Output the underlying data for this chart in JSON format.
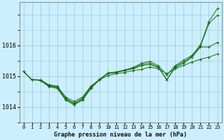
{
  "title": "Graphe pression niveau de la mer (hPa)",
  "bg_color": "#cceeff",
  "grid_color": "#99cccc",
  "line_color": "#1a6b1a",
  "x_labels": [
    "0",
    "1",
    "2",
    "3",
    "4",
    "5",
    "6",
    "7",
    "8",
    "9",
    "10",
    "11",
    "12",
    "13",
    "14",
    "15",
    "16",
    "17",
    "18",
    "19",
    "20",
    "21",
    "22",
    "23"
  ],
  "ylim": [
    1013.6,
    1017.4
  ],
  "yticks": [
    1014,
    1015,
    1016
  ],
  "series": [
    [
      1015.15,
      1014.88,
      1014.88,
      1014.72,
      1014.68,
      1014.32,
      1014.18,
      1014.32,
      1014.68,
      1014.88,
      1015.02,
      1015.08,
      1015.12,
      1015.18,
      1015.22,
      1015.3,
      1015.24,
      1015.08,
      1015.24,
      1015.35,
      1015.46,
      1015.55,
      1015.62,
      1015.72
    ],
    [
      1015.15,
      1014.88,
      1014.87,
      1014.7,
      1014.65,
      1014.28,
      1014.12,
      1014.28,
      1014.65,
      1014.9,
      1015.08,
      1015.12,
      1015.18,
      1015.24,
      1015.34,
      1015.38,
      1015.28,
      1014.88,
      1015.28,
      1015.42,
      1015.62,
      1015.95,
      1015.95,
      1016.1
    ],
    [
      1015.15,
      1014.88,
      1014.86,
      1014.68,
      1014.62,
      1014.25,
      1014.1,
      1014.25,
      1014.62,
      1014.88,
      1015.1,
      1015.12,
      1015.2,
      1015.26,
      1015.38,
      1015.42,
      1015.3,
      1014.88,
      1015.32,
      1015.46,
      1015.65,
      1015.98,
      1016.72,
      1016.98
    ],
    [
      1015.15,
      1014.88,
      1014.86,
      1014.66,
      1014.6,
      1014.22,
      1014.06,
      1014.22,
      1014.6,
      1014.88,
      1015.1,
      1015.14,
      1015.2,
      1015.28,
      1015.42,
      1015.48,
      1015.34,
      1015.04,
      1015.34,
      1015.52,
      1015.68,
      1016.02,
      1016.78,
      1017.2
    ]
  ]
}
